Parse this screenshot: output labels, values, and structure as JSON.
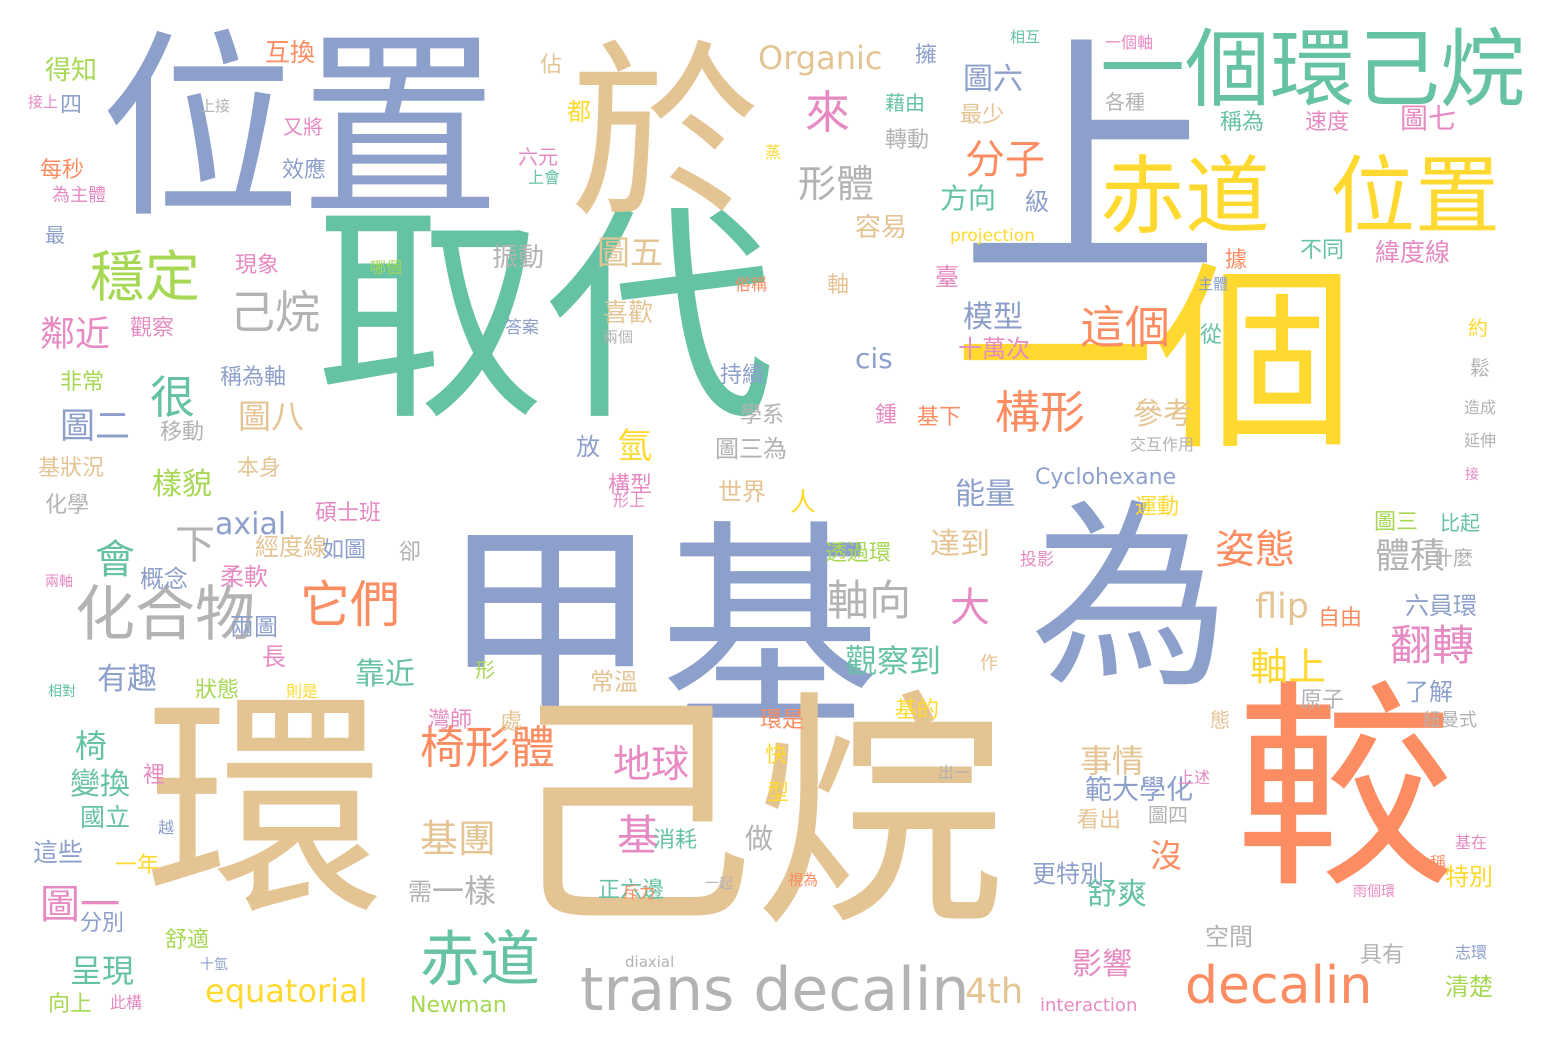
{
  "palette": {
    "green": "#66c2a5",
    "orange": "#fc8d62",
    "blue": "#8da0cb",
    "pink": "#e78ac3",
    "lime": "#a6d854",
    "yellow": "#ffd92f",
    "tan": "#e5c494",
    "gray": "#b3b3b3"
  },
  "words": [
    {
      "text": "取代",
      "color": "green"
    },
    {
      "text": "一個",
      "color": "yellow"
    },
    {
      "text": "上",
      "color": "blue"
    },
    {
      "text": "位置",
      "color": "blue"
    },
    {
      "text": "於",
      "color": "tan"
    },
    {
      "text": "甲基",
      "color": "blue"
    },
    {
      "text": "為",
      "color": "blue"
    },
    {
      "text": "環",
      "color": "tan"
    },
    {
      "text": "己烷",
      "color": "tan"
    },
    {
      "text": "較",
      "color": "orange"
    },
    {
      "text": "一個環",
      "color": "green"
    },
    {
      "text": "己烷",
      "color": "green"
    },
    {
      "text": "赤道",
      "color": "yellow"
    },
    {
      "text": "位置",
      "color": "yellow"
    },
    {
      "text": "trans decalin",
      "color": "gray"
    },
    {
      "text": "decalin",
      "color": "orange"
    },
    {
      "text": "化合物",
      "color": "gray"
    },
    {
      "text": "穩定",
      "color": "lime"
    },
    {
      "text": "它們",
      "color": "orange"
    },
    {
      "text": "赤道",
      "color": "green"
    },
    {
      "text": "椅形體",
      "color": "orange"
    },
    {
      "text": "己烷",
      "color": "gray"
    },
    {
      "text": "構形",
      "color": "orange"
    },
    {
      "text": "這個",
      "color": "orange"
    },
    {
      "text": "來",
      "color": "pink"
    },
    {
      "text": "很",
      "color": "green"
    },
    {
      "text": "Organic",
      "color": "tan"
    },
    {
      "text": "Cyclohexane",
      "color": "blue"
    },
    {
      "text": "equatorial",
      "color": "yellow"
    },
    {
      "text": "axial",
      "color": "blue"
    },
    {
      "text": "cis",
      "color": "blue"
    },
    {
      "text": "flip",
      "color": "tan"
    },
    {
      "text": "4th",
      "color": "tan"
    },
    {
      "text": "Newman",
      "color": "lime"
    },
    {
      "text": "interaction",
      "color": "pink"
    },
    {
      "text": "projection",
      "color": "yellow"
    },
    {
      "text": "diaxial",
      "color": "gray"
    },
    {
      "text": "分子",
      "color": "orange"
    },
    {
      "text": "形體",
      "color": "gray"
    },
    {
      "text": "軸向",
      "color": "gray"
    },
    {
      "text": "翻轉",
      "color": "pink"
    },
    {
      "text": "姿態",
      "color": "orange"
    },
    {
      "text": "體積",
      "color": "gray"
    },
    {
      "text": "軸上",
      "color": "yellow"
    },
    {
      "text": "大",
      "color": "pink"
    },
    {
      "text": "氫",
      "color": "yellow"
    },
    {
      "text": "基",
      "color": "pink"
    },
    {
      "text": "地球",
      "color": "pink"
    },
    {
      "text": "基團",
      "color": "tan"
    },
    {
      "text": "影響",
      "color": "pink"
    },
    {
      "text": "舒爽",
      "color": "green"
    },
    {
      "text": "事情",
      "color": "tan"
    },
    {
      "text": "範大學化",
      "color": "blue"
    },
    {
      "text": "觀察到",
      "color": "green"
    },
    {
      "text": "靠近",
      "color": "green"
    },
    {
      "text": "一樣",
      "color": "gray"
    },
    {
      "text": "模型",
      "color": "blue"
    },
    {
      "text": "參考",
      "color": "tan"
    },
    {
      "text": "能量",
      "color": "blue"
    },
    {
      "text": "達到",
      "color": "tan"
    },
    {
      "text": "圖五",
      "color": "tan"
    },
    {
      "text": "振動",
      "color": "gray"
    },
    {
      "text": "喜歡",
      "color": "tan"
    },
    {
      "text": "會",
      "color": "green"
    },
    {
      "text": "有趣",
      "color": "blue"
    },
    {
      "text": "樣貌",
      "color": "lime"
    },
    {
      "text": "圖八",
      "color": "tan"
    },
    {
      "text": "下",
      "color": "gray"
    },
    {
      "text": "鄰近",
      "color": "pink"
    },
    {
      "text": "圖二",
      "color": "blue"
    },
    {
      "text": "圖一",
      "color": "pink"
    },
    {
      "text": "呈現",
      "color": "green"
    },
    {
      "text": "椅",
      "color": "green"
    },
    {
      "text": "變換",
      "color": "green"
    },
    {
      "text": "國立",
      "color": "green"
    },
    {
      "text": "這些",
      "color": "blue"
    },
    {
      "text": "圖六",
      "color": "blue"
    },
    {
      "text": "圖七",
      "color": "pink"
    },
    {
      "text": "方向",
      "color": "green"
    },
    {
      "text": "級",
      "color": "blue"
    },
    {
      "text": "容易",
      "color": "tan"
    },
    {
      "text": "互換",
      "color": "orange"
    },
    {
      "text": "得知",
      "color": "lime"
    },
    {
      "text": "每秒",
      "color": "orange"
    },
    {
      "text": "四",
      "color": "blue"
    },
    {
      "text": "最",
      "color": "blue"
    },
    {
      "text": "佔",
      "color": "tan"
    },
    {
      "text": "都",
      "color": "yellow"
    },
    {
      "text": "六元",
      "color": "pink"
    },
    {
      "text": "擁",
      "color": "blue"
    },
    {
      "text": "藉由",
      "color": "green"
    },
    {
      "text": "轉動",
      "color": "gray"
    },
    {
      "text": "最少",
      "color": "tan"
    },
    {
      "text": "各種",
      "color": "gray"
    },
    {
      "text": "稱為",
      "color": "green"
    },
    {
      "text": "速度",
      "color": "pink"
    },
    {
      "text": "緯度線",
      "color": "pink"
    },
    {
      "text": "不同",
      "color": "green"
    },
    {
      "text": "據",
      "color": "orange"
    },
    {
      "text": "從",
      "color": "green"
    },
    {
      "text": "約",
      "color": "yellow"
    },
    {
      "text": "鬆",
      "color": "gray"
    },
    {
      "text": "造成",
      "color": "gray"
    },
    {
      "text": "延伸",
      "color": "gray"
    },
    {
      "text": "接",
      "color": "pink"
    },
    {
      "text": "比起",
      "color": "green"
    },
    {
      "text": "什麼",
      "color": "gray"
    },
    {
      "text": "圖三",
      "color": "lime"
    },
    {
      "text": "六員環",
      "color": "blue"
    },
    {
      "text": "自由",
      "color": "orange"
    },
    {
      "text": "了解",
      "color": "blue"
    },
    {
      "text": "原子",
      "color": "gray"
    },
    {
      "text": "紐曼式",
      "color": "gray"
    },
    {
      "text": "態",
      "color": "tan"
    },
    {
      "text": "上述",
      "color": "pink"
    },
    {
      "text": "圖四",
      "color": "gray"
    },
    {
      "text": "看出",
      "color": "tan"
    },
    {
      "text": "更特別",
      "color": "blue"
    },
    {
      "text": "特別",
      "color": "yellow"
    },
    {
      "text": "基在",
      "color": "pink"
    },
    {
      "text": "雨個環",
      "color": "pink"
    },
    {
      "text": "稱",
      "color": "orange"
    },
    {
      "text": "具有",
      "color": "gray"
    },
    {
      "text": "清楚",
      "color": "lime"
    },
    {
      "text": "志環",
      "color": "blue"
    },
    {
      "text": "空間",
      "color": "gray"
    },
    {
      "text": "運動",
      "color": "yellow"
    },
    {
      "text": "交互作用",
      "color": "gray"
    },
    {
      "text": "投影",
      "color": "pink"
    },
    {
      "text": "透過環",
      "color": "lime"
    },
    {
      "text": "人",
      "color": "yellow"
    },
    {
      "text": "世界",
      "color": "tan"
    },
    {
      "text": "構型",
      "color": "pink"
    },
    {
      "text": "圖三為",
      "color": "gray"
    },
    {
      "text": "學系",
      "color": "gray"
    },
    {
      "text": "持續",
      "color": "blue"
    },
    {
      "text": "鍾",
      "color": "pink"
    },
    {
      "text": "基下",
      "color": "orange"
    },
    {
      "text": "十萬次",
      "color": "pink"
    },
    {
      "text": "軸",
      "color": "tan"
    },
    {
      "text": "臺",
      "color": "pink"
    },
    {
      "text": "俗稱",
      "color": "orange"
    },
    {
      "text": "兩個",
      "color": "gray"
    },
    {
      "text": "答案",
      "color": "blue"
    },
    {
      "text": "哪個",
      "color": "lime"
    },
    {
      "text": "主體",
      "color": "blue"
    },
    {
      "text": "放",
      "color": "blue"
    },
    {
      "text": "碩士班",
      "color": "pink"
    },
    {
      "text": "經度線",
      "color": "tan"
    },
    {
      "text": "如圖",
      "color": "blue"
    },
    {
      "text": "卻",
      "color": "gray"
    },
    {
      "text": "柔軟",
      "color": "pink"
    },
    {
      "text": "概念",
      "color": "blue"
    },
    {
      "text": "兩圖",
      "color": "blue"
    },
    {
      "text": "狀態",
      "color": "lime"
    },
    {
      "text": "長",
      "color": "pink"
    },
    {
      "text": "作",
      "color": "tan"
    },
    {
      "text": "形",
      "color": "lime"
    },
    {
      "text": "則是",
      "color": "yellow"
    },
    {
      "text": "常溫",
      "color": "tan"
    },
    {
      "text": "基的",
      "color": "yellow"
    },
    {
      "text": "環是",
      "color": "orange"
    },
    {
      "text": "灣師",
      "color": "pink"
    },
    {
      "text": "處",
      "color": "tan"
    },
    {
      "text": "快",
      "color": "yellow"
    },
    {
      "text": "型",
      "color": "yellow"
    },
    {
      "text": "裡",
      "color": "pink"
    },
    {
      "text": "出一",
      "color": "gray"
    },
    {
      "text": "消耗",
      "color": "green"
    },
    {
      "text": "正六邊",
      "color": "green"
    },
    {
      "text": "一起",
      "color": "gray"
    },
    {
      "text": "做",
      "color": "gray"
    },
    {
      "text": "需",
      "color": "gray"
    },
    {
      "text": "沒",
      "color": "orange"
    },
    {
      "text": "視為",
      "color": "orange"
    },
    {
      "text": "斥力",
      "color": "orange"
    },
    {
      "text": "形上",
      "color": "pink"
    },
    {
      "text": "舒適",
      "color": "lime"
    },
    {
      "text": "分別",
      "color": "blue"
    },
    {
      "text": "一年",
      "color": "yellow"
    },
    {
      "text": "十氫",
      "color": "blue"
    },
    {
      "text": "此構",
      "color": "pink"
    },
    {
      "text": "向上",
      "color": "lime"
    },
    {
      "text": "越",
      "color": "blue"
    },
    {
      "text": "相對",
      "color": "green"
    },
    {
      "text": "兩軸",
      "color": "pink"
    },
    {
      "text": "化學",
      "color": "gray"
    },
    {
      "text": "基狀況",
      "color": "tan"
    },
    {
      "text": "本身",
      "color": "tan"
    },
    {
      "text": "移動",
      "color": "gray"
    },
    {
      "text": "稱為軸",
      "color": "blue"
    },
    {
      "text": "非常",
      "color": "lime"
    },
    {
      "text": "觀察",
      "color": "pink"
    },
    {
      "text": "現象",
      "color": "pink"
    },
    {
      "text": "為主體",
      "color": "pink"
    },
    {
      "text": "效應",
      "color": "blue"
    },
    {
      "text": "上會",
      "color": "green"
    },
    {
      "text": "蒸",
      "color": "yellow"
    },
    {
      "text": "又將",
      "color": "pink"
    },
    {
      "text": "上接",
      "color": "gray"
    },
    {
      "text": "接上",
      "color": "pink"
    },
    {
      "text": "相互",
      "color": "green"
    },
    {
      "text": "一個軸",
      "color": "pink"
    }
  ]
}
